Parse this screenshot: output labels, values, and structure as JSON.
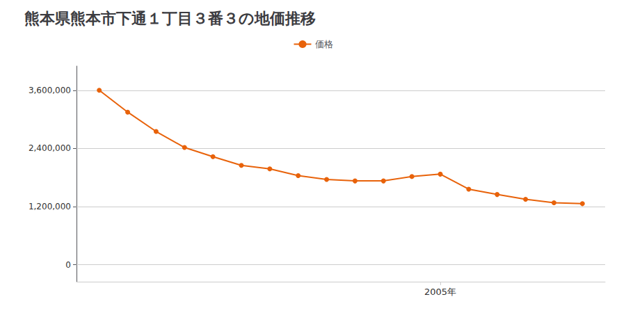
{
  "chart_data": {
    "type": "line",
    "title": "熊本県熊本市下通１丁目３番３の地価推移",
    "legend": "top",
    "x": [
      1993,
      1994,
      1995,
      1996,
      1997,
      1998,
      1999,
      2000,
      2001,
      2002,
      2003,
      2004,
      2005,
      2006,
      2007,
      2008,
      2009,
      2010
    ],
    "series": [
      {
        "name": "価格",
        "color": "#e8620a",
        "marker": "circle",
        "values": [
          3600000,
          3150000,
          2750000,
          2420000,
          2230000,
          2050000,
          1980000,
          1840000,
          1760000,
          1730000,
          1730000,
          1820000,
          1870000,
          1560000,
          1450000,
          1350000,
          1280000,
          1260000
        ]
      }
    ],
    "xlim": [
      1992.2,
      2010.8
    ],
    "xticks": [
      {
        "value": 2005,
        "label": "2005年"
      }
    ],
    "ylim": [
      -350000,
      4100000
    ],
    "yticks": [
      0,
      {
        "value": 1200000,
        "label": "1,200,000"
      },
      {
        "value": 2400000,
        "label": "2,400,000"
      },
      {
        "value": 3600000,
        "label": "3,600,000"
      }
    ],
    "grid": true
  }
}
